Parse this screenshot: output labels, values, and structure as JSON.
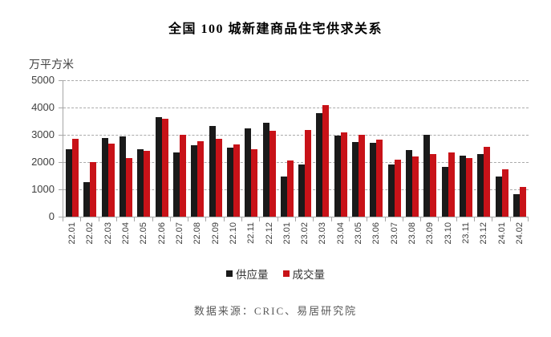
{
  "title": "全国 100 城新建商品住宅供求关系",
  "y_axis": {
    "unit": "万平方米",
    "ticks": [
      0,
      1000,
      2000,
      3000,
      4000,
      5000
    ]
  },
  "legend": {
    "supply_label": "供应量",
    "transaction_label": "成交量"
  },
  "source": "数据来源：CRIC、易居研究院",
  "colors": {
    "supply": "#1a1a1a",
    "transaction": "#c81218",
    "axis": "#a6a6a6",
    "gridline": "#ababab",
    "tick_text": "#3f3f3f"
  },
  "chart_data": {
    "type": "bar",
    "title": "全国100城新建商品住宅供求关系",
    "xlabel": "",
    "ylabel": "万平方米",
    "ylim": [
      0,
      5000
    ],
    "ytick_step": 1000,
    "grid": "horizontal-dashed",
    "legend_position": "bottom",
    "categories": [
      "22.01",
      "22.02",
      "22.03",
      "22.04",
      "22.05",
      "22.06",
      "22.07",
      "22.08",
      "22.09",
      "22.10",
      "22.11",
      "22.12",
      "23.01",
      "23.02",
      "23.03",
      "23.04",
      "23.05",
      "23.06",
      "23.07",
      "23.08",
      "23.09",
      "23.10",
      "23.11",
      "23.12",
      "24.01",
      "24.02"
    ],
    "series": [
      {
        "name": "供应量",
        "color": "#1a1a1a",
        "values": [
          2470,
          1260,
          2870,
          2950,
          2480,
          3660,
          2350,
          2620,
          3320,
          2530,
          3240,
          3440,
          1480,
          1910,
          3790,
          2960,
          2730,
          2700,
          1910,
          2440,
          2990,
          1820,
          2240,
          2300,
          1470,
          820
        ]
      },
      {
        "name": "成交量",
        "color": "#c81218",
        "values": [
          2850,
          2000,
          2670,
          2160,
          2400,
          3580,
          3000,
          2770,
          2850,
          2650,
          2470,
          3150,
          2060,
          3170,
          4090,
          3080,
          2990,
          2820,
          2080,
          2210,
          2300,
          2350,
          2150,
          2560,
          1730,
          1080
        ]
      }
    ],
    "source": "数据来源：CRIC、易居研究院"
  }
}
